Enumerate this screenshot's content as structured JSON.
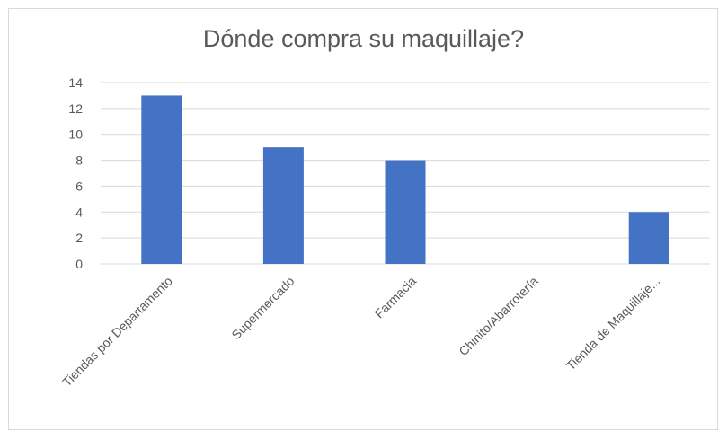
{
  "chart_data": {
    "type": "bar",
    "title": "Dónde compra su maquillaje?",
    "xlabel": "",
    "ylabel": "",
    "categories": [
      "Tiendas por Departamento",
      "Supermercado",
      "Farmacia",
      "Chinito/Abarrotería",
      "Tienda de Maquillaje..."
    ],
    "values": [
      13,
      9,
      8,
      0,
      4
    ],
    "ylim": [
      0,
      14
    ],
    "yticks": [
      "0",
      "2",
      "4",
      "6",
      "8",
      "10",
      "12",
      "14"
    ],
    "grid": true,
    "legend": "none",
    "bar_color": "#4472c4",
    "grid_color": "#d9d9d9"
  }
}
